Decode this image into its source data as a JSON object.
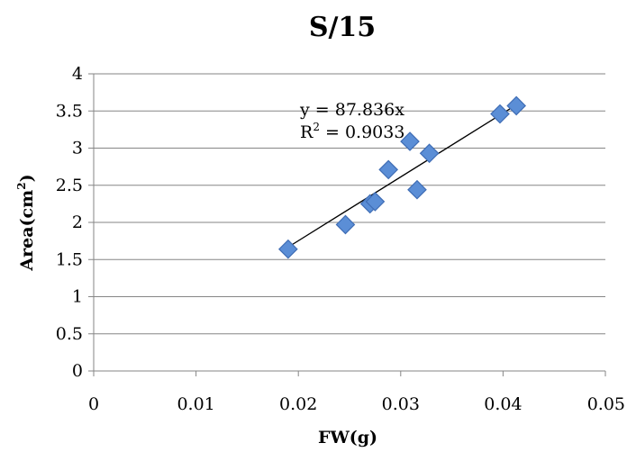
{
  "chart_data": {
    "type": "scatter",
    "title": "S/15",
    "xlabel": "FW(g)",
    "ylabel": "Area(cm",
    "ylabel_sup": "2",
    "ylabel_close": ")",
    "xlim": [
      0,
      0.05
    ],
    "ylim": [
      0,
      4
    ],
    "x_ticks": [
      0,
      0.01,
      0.02,
      0.03,
      0.04,
      0.05
    ],
    "x_tick_labels": [
      "0",
      "0.01",
      "0.02",
      "0.03",
      "0.04",
      "0.05"
    ],
    "y_ticks": [
      0,
      0.5,
      1,
      1.5,
      2,
      2.5,
      3,
      3.5,
      4
    ],
    "y_tick_labels": [
      "0",
      "0.5",
      "1",
      "1.5",
      "2",
      "2.5",
      "3",
      "3.5",
      "4"
    ],
    "grid": "horizontal",
    "legend": "none",
    "marker_color": "#5b8ed6",
    "marker_edge": "#3f6db5",
    "marker_shape": "diamond",
    "series": [
      {
        "points": [
          {
            "x": 0.019,
            "y": 1.64
          },
          {
            "x": 0.0246,
            "y": 1.97
          },
          {
            "x": 0.027,
            "y": 2.25
          },
          {
            "x": 0.0275,
            "y": 2.28
          },
          {
            "x": 0.0288,
            "y": 2.71
          },
          {
            "x": 0.0309,
            "y": 3.09
          },
          {
            "x": 0.0316,
            "y": 2.44
          },
          {
            "x": 0.0328,
            "y": 2.93
          },
          {
            "x": 0.0397,
            "y": 3.46
          },
          {
            "x": 0.0413,
            "y": 3.57
          }
        ]
      }
    ],
    "trendline": {
      "type": "linear",
      "x_range": [
        0.0188,
        0.0415
      ],
      "y_range": [
        1.65,
        3.6
      ]
    },
    "annotations": {
      "equation": "y = 87.836x",
      "r2_label": "R",
      "r2_sup": "2",
      "r2_value": " = 0.9033"
    }
  }
}
